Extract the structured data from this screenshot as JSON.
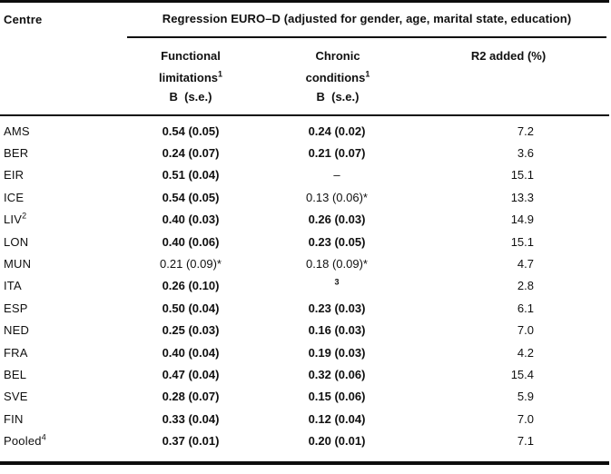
{
  "table": {
    "centre_header": "Centre",
    "span_header": "Regression EURO–D (adjusted for gender, age, marital state, education)",
    "columns": {
      "functional_line1": "Functional",
      "functional_line2": "limitations",
      "functional_footnote": "1",
      "chronic_line1": "Chronic",
      "chronic_line2": "conditions",
      "chronic_footnote": "1",
      "b_se_label": "B  (s.e.)",
      "r2_label": "R2 added (%)"
    },
    "rows": [
      {
        "centre": "AMS",
        "centre_sup": "",
        "func": "0.54 (0.05)",
        "func_bold": true,
        "chron": "0.24 (0.02)",
        "chron_bold": true,
        "chron_sup": "",
        "r2": "7.2"
      },
      {
        "centre": "BER",
        "centre_sup": "",
        "func": "0.24 (0.07)",
        "func_bold": true,
        "chron": "0.21 (0.07)",
        "chron_bold": true,
        "chron_sup": "",
        "r2": "3.6"
      },
      {
        "centre": "EIR",
        "centre_sup": "",
        "func": "0.51 (0.04)",
        "func_bold": true,
        "chron": "–",
        "chron_bold": false,
        "chron_sup": "",
        "r2": "15.1"
      },
      {
        "centre": "ICE",
        "centre_sup": "",
        "func": "0.54 (0.05)",
        "func_bold": true,
        "chron": "0.13 (0.06)*",
        "chron_bold": false,
        "chron_sup": "",
        "r2": "13.3"
      },
      {
        "centre": "LIV",
        "centre_sup": "2",
        "func": "0.40 (0.03)",
        "func_bold": true,
        "chron": "0.26 (0.03)",
        "chron_bold": true,
        "chron_sup": "",
        "r2": "14.9"
      },
      {
        "centre": "LON",
        "centre_sup": "",
        "func": "0.40 (0.06)",
        "func_bold": true,
        "chron": "0.23 (0.05)",
        "chron_bold": true,
        "chron_sup": "",
        "r2": "15.1"
      },
      {
        "centre": "MUN",
        "centre_sup": "",
        "func": "0.21 (0.09)*",
        "func_bold": false,
        "chron": "0.18 (0.09)*",
        "chron_bold": false,
        "chron_sup": "",
        "r2": "4.7"
      },
      {
        "centre": "ITA",
        "centre_sup": "",
        "func": "0.26 (0.10)",
        "func_bold": true,
        "chron": "",
        "chron_bold": true,
        "chron_sup": "3",
        "r2": "2.8"
      },
      {
        "centre": "ESP",
        "centre_sup": "",
        "func": "0.50 (0.04)",
        "func_bold": true,
        "chron": "0.23 (0.03)",
        "chron_bold": true,
        "chron_sup": "",
        "r2": "6.1"
      },
      {
        "centre": "NED",
        "centre_sup": "",
        "func": "0.25 (0.03)",
        "func_bold": true,
        "chron": "0.16 (0.03)",
        "chron_bold": true,
        "chron_sup": "",
        "r2": "7.0"
      },
      {
        "centre": "FRA",
        "centre_sup": "",
        "func": "0.40 (0.04)",
        "func_bold": true,
        "chron": "0.19 (0.03)",
        "chron_bold": true,
        "chron_sup": "",
        "r2": "4.2"
      },
      {
        "centre": "BEL",
        "centre_sup": "",
        "func": "0.47 (0.04)",
        "func_bold": true,
        "chron": "0.32 (0.06)",
        "chron_bold": true,
        "chron_sup": "",
        "r2": "15.4"
      },
      {
        "centre": "SVE",
        "centre_sup": "",
        "func": "0.28 (0.07)",
        "func_bold": true,
        "chron": "0.15 (0.06)",
        "chron_bold": true,
        "chron_sup": "",
        "r2": "5.9"
      },
      {
        "centre": "FIN",
        "centre_sup": "",
        "func": "0.33 (0.04)",
        "func_bold": true,
        "chron": "0.12 (0.04)",
        "chron_bold": true,
        "chron_sup": "",
        "r2": "7.0"
      },
      {
        "centre": "Pooled",
        "centre_sup": "4",
        "func": "0.37 (0.01)",
        "func_bold": true,
        "chron": "0.20 (0.01)",
        "chron_bold": true,
        "chron_sup": "",
        "r2": "7.1"
      }
    ]
  }
}
